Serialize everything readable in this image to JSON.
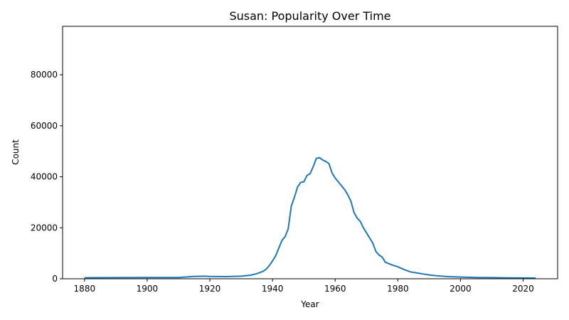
{
  "chart_data": {
    "type": "line",
    "title": "Susan: Popularity Over Time",
    "xlabel": "Year",
    "ylabel": "Count",
    "xlim": [
      1873,
      2031
    ],
    "ylim": [
      0,
      99000
    ],
    "grid": false,
    "xticks": [
      1880,
      1900,
      1920,
      1940,
      1960,
      1980,
      2000,
      2020
    ],
    "yticks": [
      0,
      20000,
      40000,
      60000,
      80000
    ],
    "series": [
      {
        "color": "#1f77b4",
        "x": [
          1880,
          1890,
          1900,
          1910,
          1915,
          1918,
          1920,
          1925,
          1930,
          1933,
          1935,
          1937,
          1938,
          1939,
          1940,
          1941,
          1942,
          1943,
          1944,
          1945,
          1946,
          1947,
          1948,
          1949,
          1950,
          1951,
          1952,
          1953,
          1954,
          1955,
          1956,
          1957,
          1958,
          1959,
          1960,
          1961,
          1962,
          1963,
          1964,
          1965,
          1966,
          1967,
          1968,
          1969,
          1970,
          1971,
          1972,
          1973,
          1974,
          1975,
          1976,
          1978,
          1980,
          1982,
          1984,
          1986,
          1988,
          1990,
          1993,
          1996,
          2000,
          2005,
          2010,
          2015,
          2020,
          2024
        ],
        "y": [
          400,
          450,
          500,
          500,
          900,
          1000,
          900,
          850,
          1000,
          1400,
          2000,
          2900,
          3800,
          5200,
          7000,
          9000,
          12000,
          15000,
          16500,
          19500,
          28500,
          32000,
          36000,
          37800,
          38000,
          40500,
          41200,
          44000,
          47200,
          47500,
          46600,
          46000,
          45200,
          41500,
          39500,
          38000,
          36500,
          35000,
          33000,
          30500,
          26000,
          23800,
          22500,
          20000,
          18000,
          16000,
          14000,
          10700,
          9300,
          8500,
          6500,
          5500,
          4700,
          3600,
          2700,
          2300,
          1900,
          1500,
          1100,
          850,
          650,
          500,
          450,
          350,
          300,
          280
        ]
      }
    ]
  }
}
